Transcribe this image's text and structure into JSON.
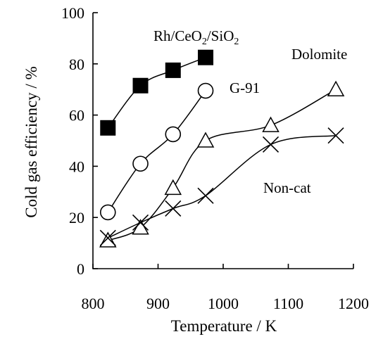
{
  "chart_data": {
    "type": "line",
    "title": "",
    "xlabel": "Temperature / K",
    "ylabel": "Cold gas efficiency / %",
    "xlim": [
      800,
      1200
    ],
    "ylim": [
      0,
      100
    ],
    "xticks": [
      800,
      900,
      1000,
      1100,
      1200
    ],
    "yticks": [
      0,
      20,
      40,
      60,
      80,
      100
    ],
    "grid": false,
    "legend": "none",
    "series": [
      {
        "name": "Rh/CeO2/SiO2",
        "marker": "filled-square",
        "color": "#000000",
        "x": [
          823,
          873,
          923,
          973
        ],
        "y": [
          55,
          71.5,
          77.5,
          82.5
        ]
      },
      {
        "name": "G-91",
        "marker": "open-circle",
        "color": "#000000",
        "x": [
          823,
          873,
          923,
          973
        ],
        "y": [
          22,
          41,
          52.5,
          69.5
        ]
      },
      {
        "name": "Dolomite",
        "marker": "open-triangle",
        "color": "#000000",
        "x": [
          823,
          873,
          923,
          973,
          1073,
          1173
        ],
        "y": [
          11,
          16,
          31.5,
          50,
          56,
          70
        ]
      },
      {
        "name": "Non-cat",
        "marker": "x-cross",
        "color": "#000000",
        "x": [
          823,
          873,
          923,
          973,
          1073,
          1173
        ],
        "y": [
          12,
          18,
          23.5,
          28.5,
          48.5,
          52
        ]
      }
    ]
  }
}
